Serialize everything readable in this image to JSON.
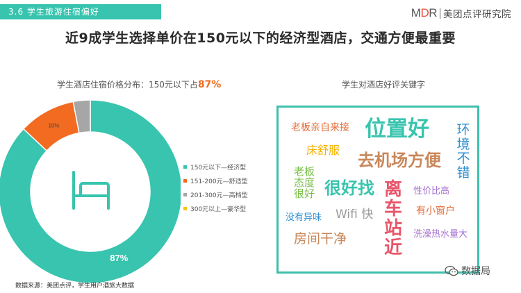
{
  "header": {
    "section_tag": "3.6 学生旅游住宿偏好",
    "brand_logo_left": "M",
    "brand_logo_accent": "D",
    "brand_logo_right": "R",
    "brand_name": "美团点评研究院"
  },
  "headline": "近9成学生选择单价在150元以下的经济型酒店，交通方便最重要",
  "chart_data": {
    "type": "pie",
    "variant": "donut",
    "title_prefix": "学生酒店住宿价格分布：150元以下占",
    "title_highlight": "87%",
    "categories": [
      "150元以下—经济型",
      "151-200元—舒适型",
      "201-300元—高档型",
      "300元以上—豪华型"
    ],
    "values": [
      87,
      10,
      3,
      0
    ],
    "data_labels": [
      "87%",
      "10%",
      "3%",
      ""
    ],
    "colors": [
      "#38c4ae",
      "#f26b21",
      "#a6a6a6",
      "#f5c518"
    ],
    "legend_position": "right",
    "center_icon": "bed-icon"
  },
  "keywords": {
    "title": "学生对酒店好评关键字",
    "items": [
      {
        "id": "laoban-qinzi",
        "text": "老板亲自来接",
        "color": "#e06d3a"
      },
      {
        "id": "weizhi-hao",
        "text": "位置好",
        "color": "#38c4ae"
      },
      {
        "id": "huanjing-bucuo",
        "text": "环境不错",
        "color": "#2f8fcf"
      },
      {
        "id": "chuang-shufu",
        "text": "床舒服",
        "color": "#f5b300"
      },
      {
        "id": "qu-jichang",
        "text": "去机场方便",
        "color": "#c9875a"
      },
      {
        "id": "laoban-taidu",
        "text": "老板态度很好",
        "color": "#7bbf4a"
      },
      {
        "id": "hen-haozhao",
        "text": "很好找",
        "color": "#38c4ae"
      },
      {
        "id": "li-chezhan",
        "text": "离车站近",
        "color": "#e8566b"
      },
      {
        "id": "xingjiabi",
        "text": "性价比高",
        "color": "#a36fd0"
      },
      {
        "id": "you-xiaochuanghu",
        "text": "有小窗户",
        "color": "#e06d3a"
      },
      {
        "id": "wifi-kuai",
        "text": "Wifi 快",
        "color": "#9a9a9a"
      },
      {
        "id": "mei-yiwei",
        "text": "没有异味",
        "color": "#2f8fcf"
      },
      {
        "id": "xizao",
        "text": "洗澡热水量大",
        "color": "#a36fd0"
      },
      {
        "id": "fangjian",
        "text": "房间干净",
        "color": "#c9875a"
      }
    ]
  },
  "footer": {
    "source": "数据来源：美团点评，学生用户酒旅大数据"
  },
  "watermark": {
    "icon": "wechat-icon",
    "text": "数据局"
  }
}
